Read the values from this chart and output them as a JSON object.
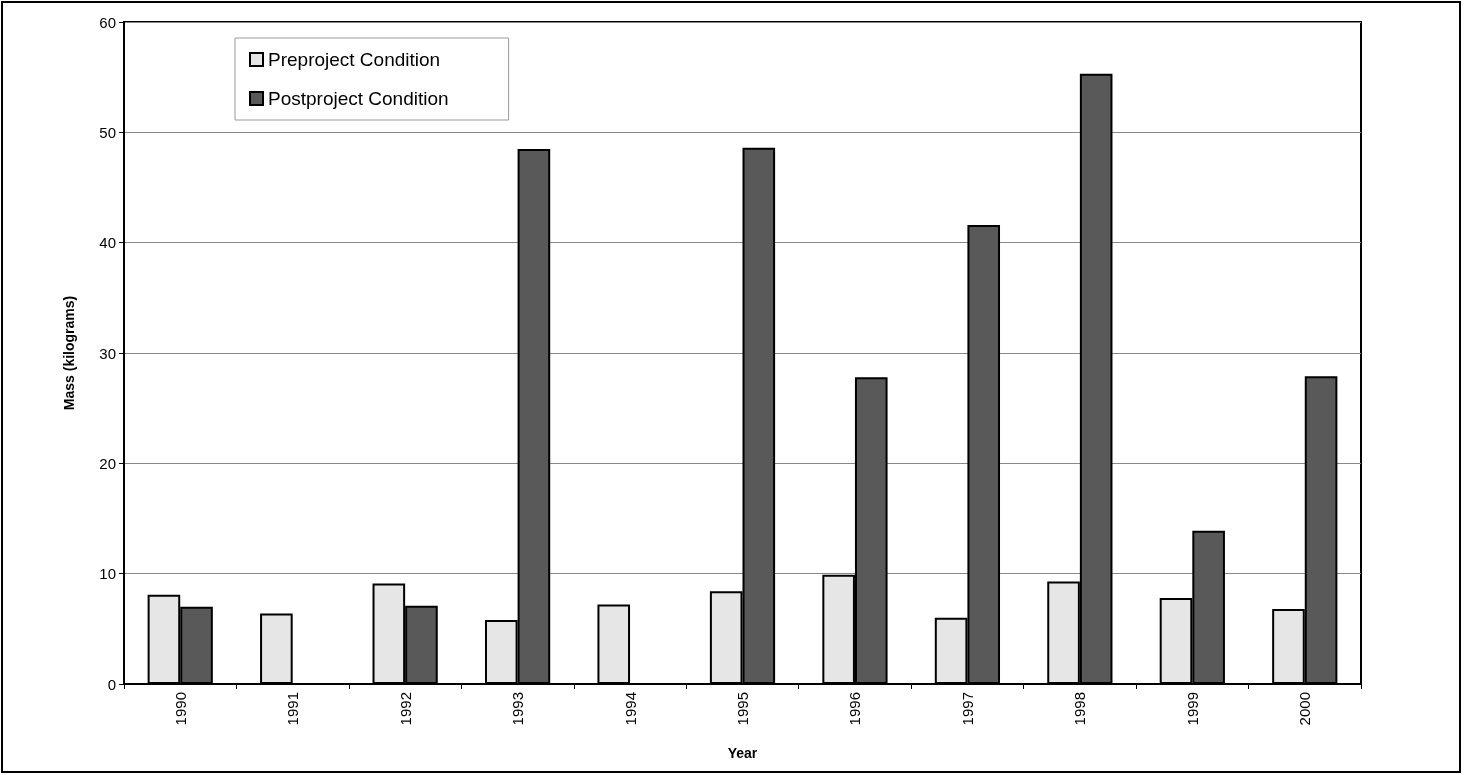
{
  "chart_data": {
    "type": "bar",
    "xlabel": "Year",
    "ylabel": "Mass (kilograms)",
    "categories": [
      "1990",
      "1991",
      "1992",
      "1993",
      "1994",
      "1995",
      "1996",
      "1997",
      "1998",
      "1999",
      "2000"
    ],
    "series": [
      {
        "name": "Preproject Condition",
        "color": "#e6e6e6",
        "values": [
          8.1,
          6.4,
          9.1,
          5.8,
          7.2,
          8.4,
          9.9,
          6.0,
          9.3,
          7.8,
          6.8
        ]
      },
      {
        "name": "Postproject Condition",
        "color": "#595959",
        "values": [
          7.0,
          null,
          7.1,
          48.5,
          null,
          48.6,
          27.8,
          41.6,
          55.3,
          13.9,
          27.9
        ]
      }
    ],
    "ylim": [
      0,
      60
    ],
    "yticks": [
      0,
      10,
      20,
      30,
      40,
      50,
      60
    ],
    "grid": "y",
    "legend": "top left"
  }
}
